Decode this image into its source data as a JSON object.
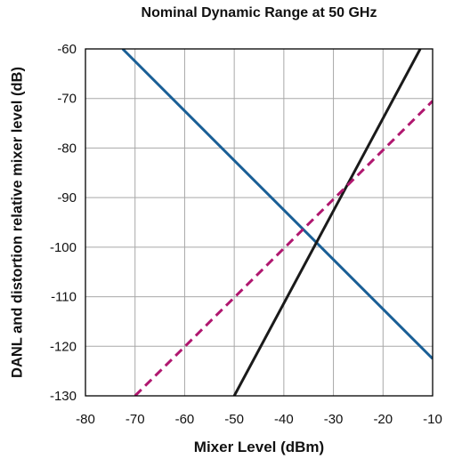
{
  "chart_data": {
    "type": "line",
    "title": "Nominal Dynamic Range at 50 GHz",
    "xlabel": "Mixer Level (dBm)",
    "ylabel": "DANL and distortion relative mixer level (dB)",
    "xlim": [
      -80,
      -10
    ],
    "ylim": [
      -130,
      -60
    ],
    "x_ticks": [
      -80,
      -70,
      -60,
      -50,
      -40,
      -30,
      -20,
      -10
    ],
    "y_ticks": [
      -60,
      -70,
      -80,
      -90,
      -100,
      -110,
      -120,
      -130
    ],
    "grid": true,
    "legend": "none",
    "series": [
      {
        "color": "#1a5f96",
        "dash": "solid",
        "x": [
          -72.5,
          -10
        ],
        "y": [
          -60,
          -122.5
        ]
      },
      {
        "color": "#1a1a1a",
        "dash": "solid",
        "x": [
          -50,
          -12.5
        ],
        "y": [
          -130,
          -60
        ]
      },
      {
        "color": "#b0176f",
        "dash": "dashed",
        "x": [
          -70,
          -10
        ],
        "y": [
          -130,
          -70.5
        ]
      }
    ]
  }
}
